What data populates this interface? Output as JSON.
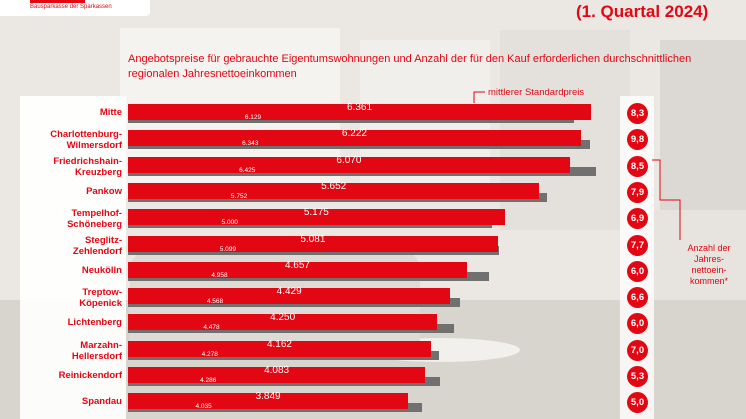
{
  "header": {
    "logo_subtitle": "Bausparkasse der Sparkassen",
    "quarter": "(1. Quartal 2024)"
  },
  "subtitle": "Angebotspreise für gebrauchte Eigentumswohnungen und Anzahl der für den Kauf erforderlichen durchschnittlichen regionalen Jahresnettoeinkommen",
  "legend": {
    "standard_price": "mittlerer Standardpreis",
    "income": "Anzahl der Jahres-nettoein-kommen*"
  },
  "colors": {
    "accent": "#e30613",
    "grey": "#707070"
  },
  "chart_data": {
    "type": "bar",
    "orientation": "horizontal",
    "categories": [
      "Mitte",
      "Charlottenburg-Wilmersdorf",
      "Friedrichshain-Kreuzberg",
      "Pankow",
      "Tempelhof-Schöneberg",
      "Steglitz-Zehlendorf",
      "Neukölln",
      "Treptow-Köpenick",
      "Lichtenberg",
      "Marzahn-Hellersdorf",
      "Reinickendorf",
      "Spandau"
    ],
    "series": [
      {
        "name": "mittlerer Standardpreis",
        "values": [
          6361,
          6222,
          6070,
          5652,
          5175,
          5081,
          4657,
          4429,
          4250,
          4162,
          4083,
          3849
        ]
      },
      {
        "values": [
          6129,
          6343,
          6425,
          5752,
          5000,
          5099,
          4958,
          4568,
          4478,
          4278,
          4286,
          4035
        ]
      }
    ],
    "labels_red": [
      "6.361",
      "6.222",
      "6.070",
      "5.652",
      "5.175",
      "5.081",
      "4.657",
      "4.429",
      "4.250",
      "4.162",
      "4.083",
      "3.849"
    ],
    "labels_grey": [
      "6.129",
      "6.343",
      "6.425",
      "5.752",
      "5.000",
      "5.099",
      "4.958",
      "4.568",
      "4.478",
      "4.278",
      "4.286",
      "4.035"
    ],
    "category_lines": [
      [
        "Mitte"
      ],
      [
        "Charlottenburg-",
        "Wilmersdorf"
      ],
      [
        "Friedrichshain-",
        "Kreuzberg"
      ],
      [
        "Pankow"
      ],
      [
        "Tempelhof-",
        "Schöneberg"
      ],
      [
        "Steglitz-",
        "Zehlendorf"
      ],
      [
        "Neukölln"
      ],
      [
        "Treptow-",
        "Köpenick"
      ],
      [
        "Lichtenberg"
      ],
      [
        "Marzahn-",
        "Hellersdorf"
      ],
      [
        "Reinickendorf"
      ],
      [
        "Spandau"
      ]
    ],
    "income_ratio": [
      "8,3",
      "9,8",
      "8,5",
      "7,9",
      "6,9",
      "7,7",
      "6,0",
      "6,6",
      "6,0",
      "7,0",
      "5,3",
      "5,0"
    ],
    "xlim": [
      0,
      6400
    ]
  }
}
